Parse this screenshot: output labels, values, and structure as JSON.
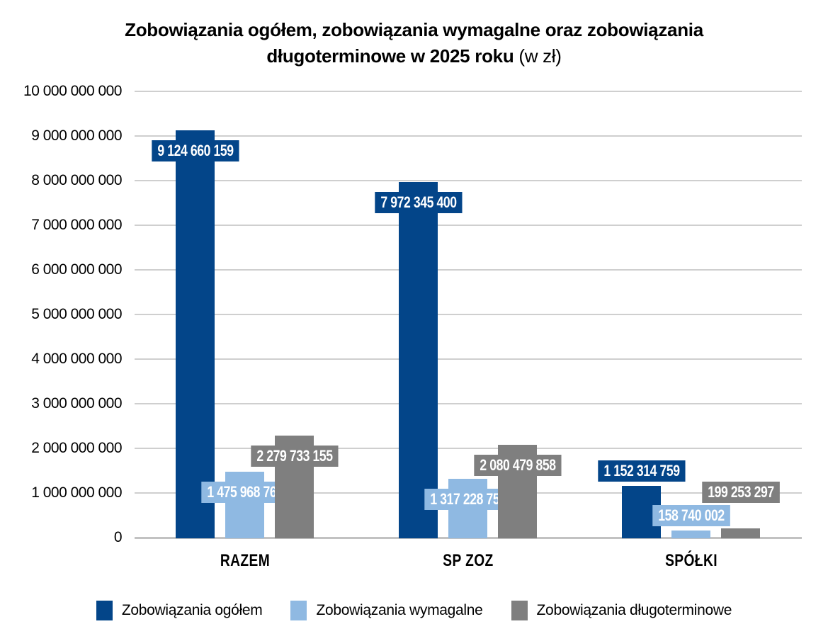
{
  "chart_data": {
    "type": "bar",
    "title": "Zobowiązania ogółem, zobowiązania wymagalne oraz zobowiązania długoterminowe w 2025 roku (w zł)",
    "title_lines": [
      "Zobowiązania ogółem, zobowiązania wymagalne oraz zobowiązania",
      "długoterminowe w 2025 roku"
    ],
    "title_suffix": "(w zł)",
    "categories": [
      "RAZEM",
      "SP ZOZ",
      "SPÓŁKI"
    ],
    "series": [
      {
        "name": "Zobowiązania ogółem",
        "color": "#034589",
        "values": [
          9124660159,
          7972345400,
          1152314759
        ],
        "data_labels": [
          "9 124 660 159",
          "7 972 345 400",
          "1 152 314 759"
        ]
      },
      {
        "name": "Zobowiązania wymagalne",
        "color": "#8FB9E2",
        "values": [
          1475968761,
          1317228759,
          158740002
        ],
        "data_labels": [
          "1 475 968 761",
          "1 317 228 759",
          "158 740 002"
        ]
      },
      {
        "name": "Zobowiązania długoterminowe",
        "color": "#7F7F7F",
        "values": [
          2279733155,
          2080479858,
          199253297
        ],
        "data_labels": [
          "2 279 733 155",
          "2 080 479 858",
          "199 253 297"
        ]
      }
    ],
    "y_axis": {
      "min": 0,
      "max": 10000000000,
      "step": 1000000000,
      "tick_labels": [
        "0",
        "1 000 000 000",
        "2 000 000 000",
        "3 000 000 000",
        "4 000 000 000",
        "5 000 000 000",
        "6 000 000 000",
        "7 000 000 000",
        "8 000 000 000",
        "9 000 000 000",
        "10 000 000 000"
      ]
    },
    "grid": true,
    "legend_position": "bottom",
    "colors": {
      "grid": "#CFCFCF",
      "baseline": "#C2C2C2",
      "text": "#000000",
      "data_label_text": "#FFFFFF"
    }
  }
}
